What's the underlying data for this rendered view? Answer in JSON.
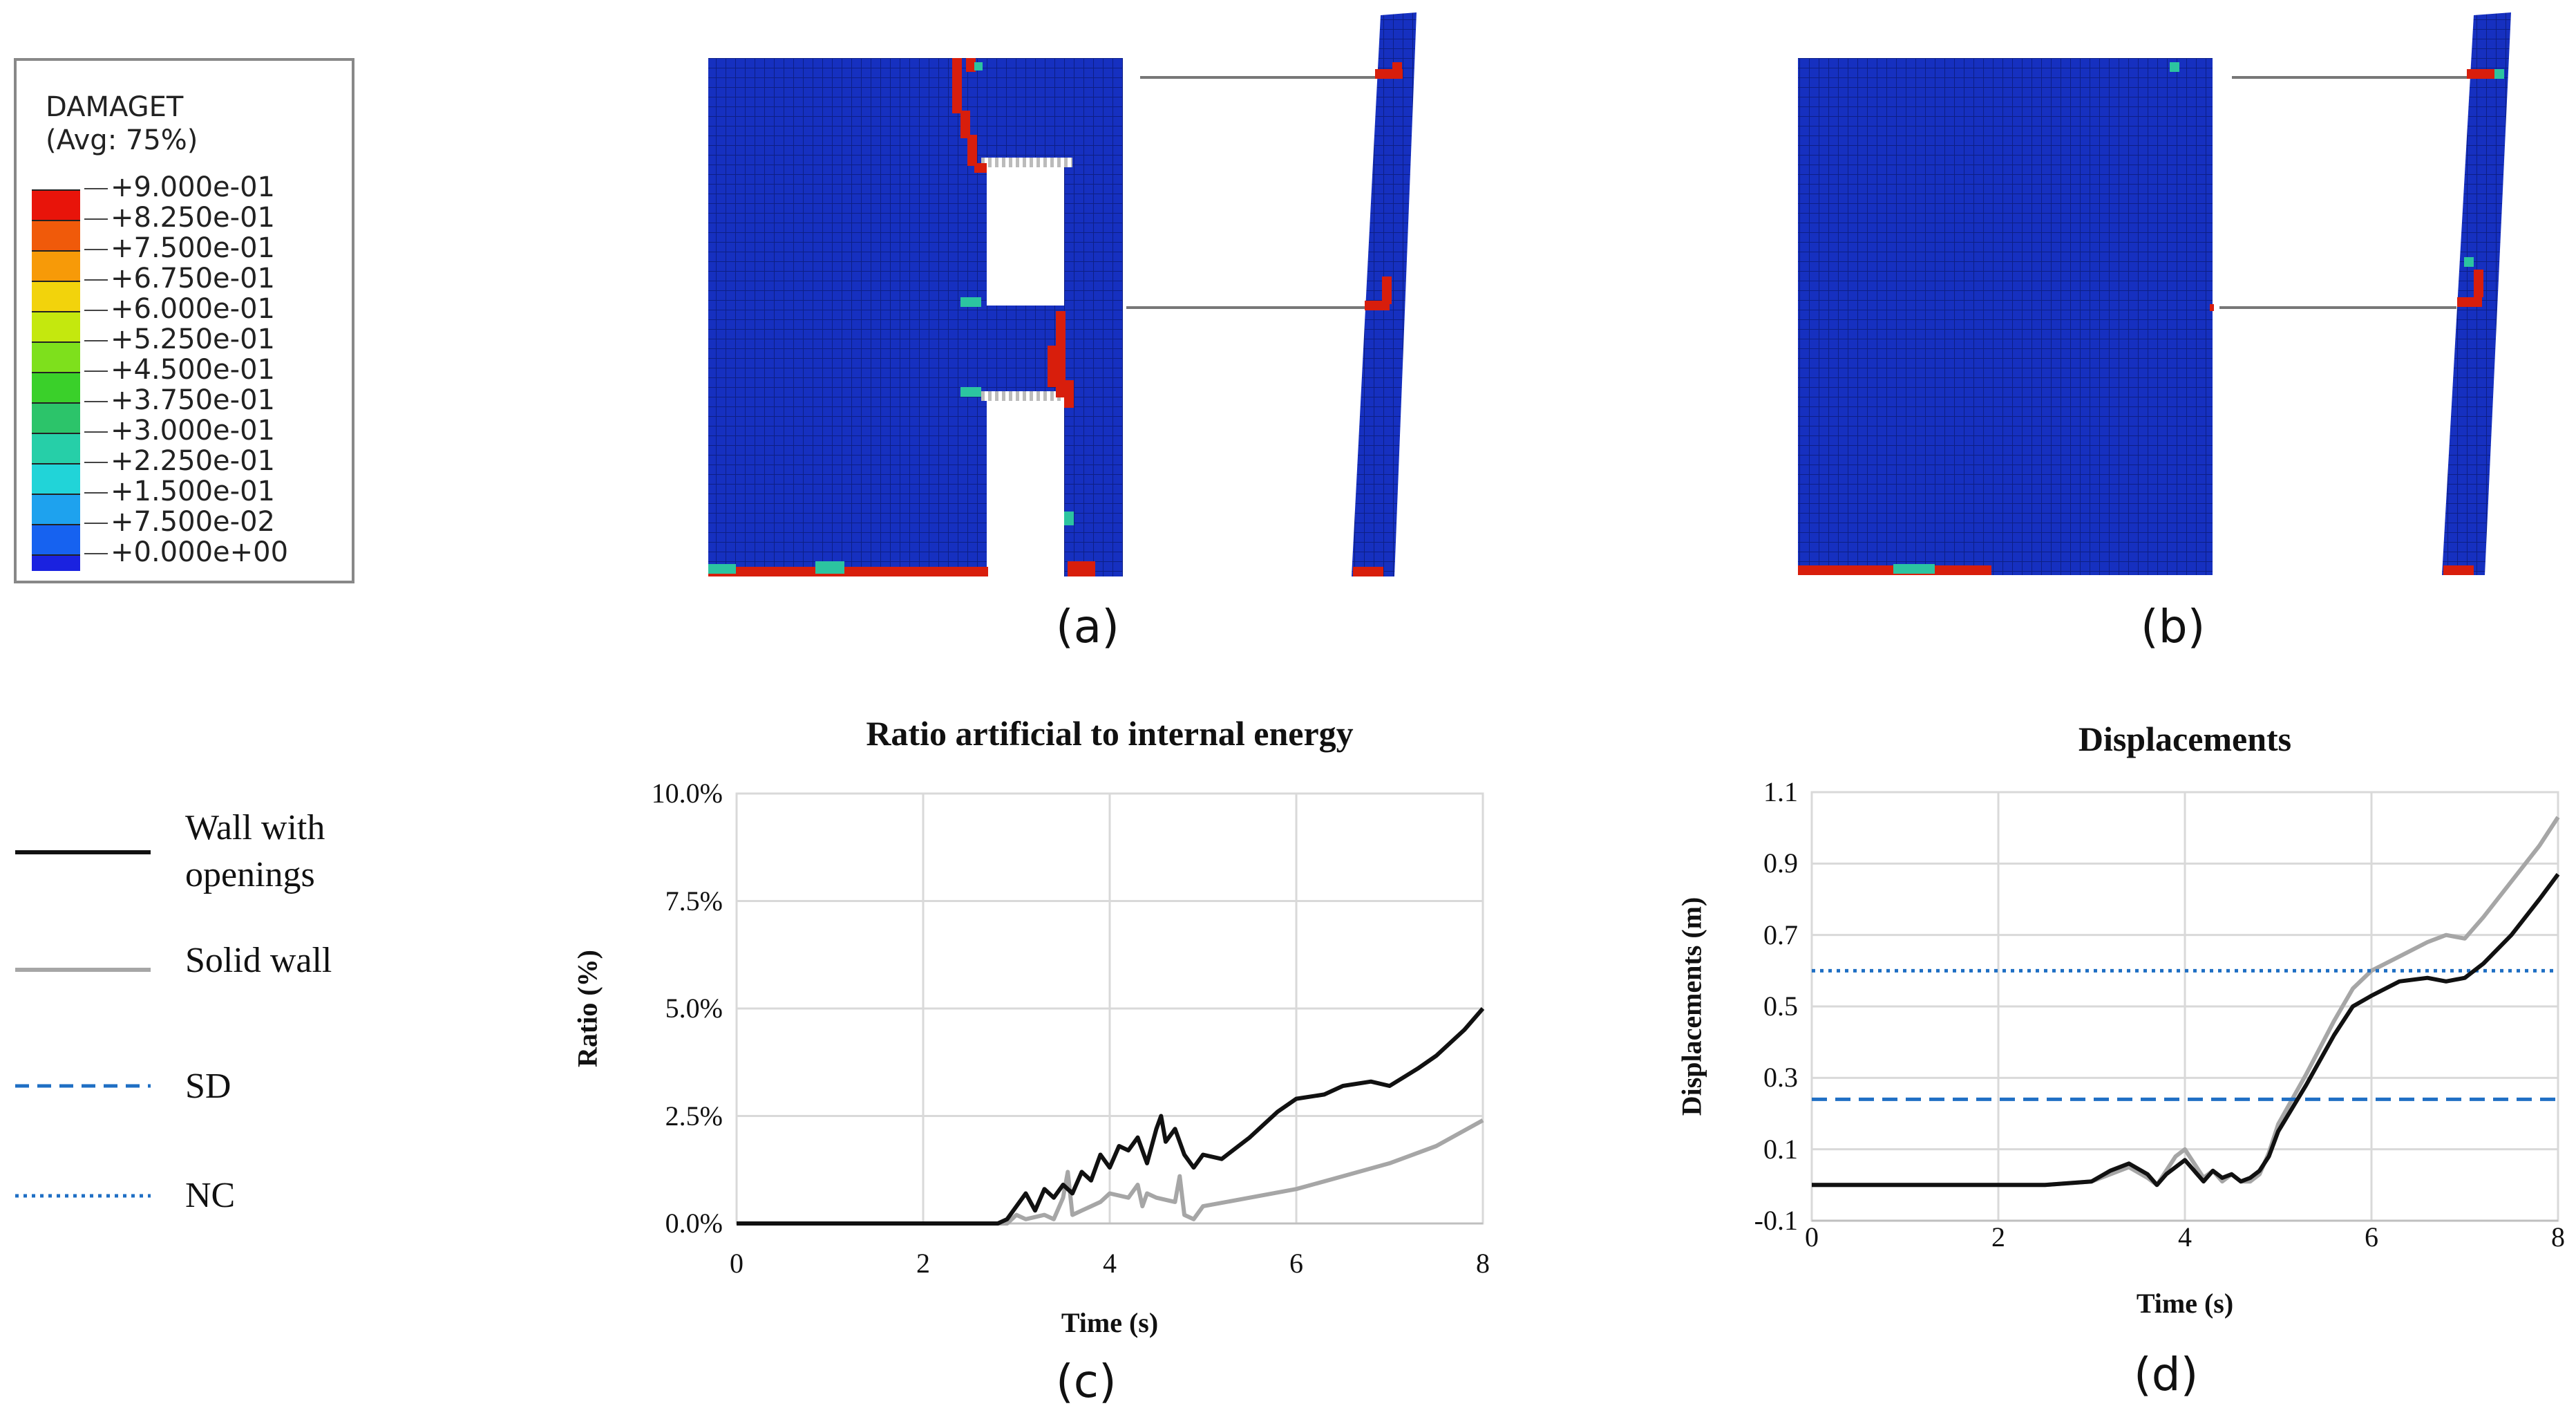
{
  "colorbar": {
    "title": "DAMAGET",
    "subtitle": "(Avg: 75%)",
    "labels": [
      "+9.000e-01",
      "+8.250e-01",
      "+7.500e-01",
      "+6.750e-01",
      "+6.000e-01",
      "+5.250e-01",
      "+4.500e-01",
      "+3.750e-01",
      "+3.000e-01",
      "+2.250e-01",
      "+1.500e-01",
      "+7.500e-02",
      "+0.000e+00"
    ],
    "colors": [
      "#e8140a",
      "#f05a0a",
      "#f79a08",
      "#f2d30c",
      "#c4e80e",
      "#7ee01c",
      "#3ad02a",
      "#2cc46a",
      "#26cfa8",
      "#21d4d8",
      "#1ea2ee",
      "#1662f0",
      "#1a22e0"
    ]
  },
  "panels": {
    "a": "(a)",
    "b": "(b)",
    "c": "(c)",
    "d": "(d)"
  },
  "legend": {
    "wall_openings": "Wall with openings",
    "wall_openings_l1": "Wall with",
    "wall_openings_l2": "openings",
    "solid_wall": "Solid wall",
    "sd": "SD",
    "nc": "NC"
  },
  "colors": {
    "wall_openings": "#111111",
    "solid_wall": "#a6a6a6",
    "sd": "#1f6fc4",
    "nc": "#1f6fc4",
    "mesh_blue": "#1428b8",
    "damage_red": "#d81e0c"
  },
  "chart_data": [
    {
      "type": "line",
      "title": "Ratio artificial to internal energy",
      "xlabel": "Time (s)",
      "ylabel": "Ratio (%)",
      "xlim": [
        0,
        8
      ],
      "ylim": [
        0,
        10
      ],
      "xticks": [
        0,
        2,
        4,
        6,
        8
      ],
      "xtick_labels": [
        "0",
        "2",
        "4",
        "6",
        "8"
      ],
      "yticks": [
        0,
        2.5,
        5,
        7.5,
        10
      ],
      "ytick_labels": [
        "0.0%",
        "2.5%",
        "5.0%",
        "7.5%",
        "10.0%"
      ],
      "grid": true,
      "series": [
        {
          "name": "Wall with openings",
          "x": [
            0,
            2.8,
            2.9,
            3.0,
            3.1,
            3.2,
            3.3,
            3.4,
            3.5,
            3.6,
            3.7,
            3.8,
            3.9,
            4.0,
            4.1,
            4.2,
            4.3,
            4.4,
            4.5,
            4.55,
            4.6,
            4.7,
            4.8,
            4.9,
            5.0,
            5.2,
            5.5,
            5.8,
            6.0,
            6.3,
            6.5,
            6.8,
            7.0,
            7.3,
            7.5,
            7.8,
            8.0
          ],
          "y": [
            0,
            0,
            0.1,
            0.4,
            0.7,
            0.3,
            0.8,
            0.6,
            0.9,
            0.7,
            1.2,
            1.0,
            1.6,
            1.3,
            1.8,
            1.7,
            2.0,
            1.4,
            2.2,
            2.5,
            1.9,
            2.2,
            1.6,
            1.3,
            1.6,
            1.5,
            2.0,
            2.6,
            2.9,
            3.0,
            3.2,
            3.3,
            3.2,
            3.6,
            3.9,
            4.5,
            5.0
          ]
        },
        {
          "name": "Solid wall",
          "x": [
            0,
            2.9,
            3.0,
            3.1,
            3.3,
            3.4,
            3.5,
            3.55,
            3.6,
            3.7,
            3.8,
            3.9,
            4.0,
            4.2,
            4.3,
            4.35,
            4.4,
            4.5,
            4.7,
            4.75,
            4.8,
            4.9,
            5.0,
            5.5,
            6.0,
            6.5,
            7.0,
            7.5,
            8.0
          ],
          "y": [
            0,
            0,
            0.2,
            0.1,
            0.2,
            0.1,
            0.6,
            1.2,
            0.2,
            0.3,
            0.4,
            0.5,
            0.7,
            0.6,
            0.9,
            0.4,
            0.7,
            0.6,
            0.5,
            1.1,
            0.2,
            0.1,
            0.4,
            0.6,
            0.8,
            1.1,
            1.4,
            1.8,
            2.4
          ]
        }
      ]
    },
    {
      "type": "line",
      "title": "Displacements",
      "xlabel": "Time (s)",
      "ylabel": "Displacements (m)",
      "xlim": [
        0,
        8
      ],
      "ylim": [
        -0.1,
        1.1
      ],
      "xticks": [
        0,
        2,
        4,
        6,
        8
      ],
      "xtick_labels": [
        "0",
        "2",
        "4",
        "6",
        "8"
      ],
      "yticks": [
        -0.1,
        0.1,
        0.3,
        0.5,
        0.7,
        0.9,
        1.1
      ],
      "ytick_labels": [
        "-0.1",
        "0.1",
        "0.3",
        "0.5",
        "0.7",
        "0.9",
        "1.1"
      ],
      "grid": true,
      "series": [
        {
          "name": "Wall with openings",
          "x": [
            0,
            2.5,
            3.0,
            3.2,
            3.4,
            3.6,
            3.7,
            3.8,
            3.9,
            4.0,
            4.1,
            4.2,
            4.3,
            4.4,
            4.5,
            4.6,
            4.7,
            4.8,
            4.9,
            5.0,
            5.3,
            5.6,
            5.8,
            6.0,
            6.3,
            6.6,
            6.8,
            7.0,
            7.2,
            7.5,
            7.8,
            8.0
          ],
          "y": [
            0,
            0,
            0.01,
            0.04,
            0.06,
            0.03,
            0.0,
            0.03,
            0.05,
            0.07,
            0.04,
            0.01,
            0.04,
            0.02,
            0.03,
            0.01,
            0.02,
            0.04,
            0.08,
            0.15,
            0.28,
            0.42,
            0.5,
            0.53,
            0.57,
            0.58,
            0.57,
            0.58,
            0.62,
            0.7,
            0.8,
            0.87
          ]
        },
        {
          "name": "Solid wall",
          "x": [
            0,
            2.5,
            3.0,
            3.2,
            3.4,
            3.6,
            3.7,
            3.8,
            3.9,
            4.0,
            4.1,
            4.2,
            4.3,
            4.4,
            4.5,
            4.6,
            4.7,
            4.8,
            4.9,
            5.0,
            5.3,
            5.6,
            5.8,
            6.0,
            6.3,
            6.6,
            6.8,
            7.0,
            7.2,
            7.5,
            7.8,
            8.0
          ],
          "y": [
            0,
            0,
            0.01,
            0.03,
            0.05,
            0.02,
            0.0,
            0.04,
            0.08,
            0.1,
            0.06,
            0.02,
            0.04,
            0.01,
            0.03,
            0.01,
            0.01,
            0.03,
            0.09,
            0.17,
            0.31,
            0.46,
            0.55,
            0.6,
            0.64,
            0.68,
            0.7,
            0.69,
            0.75,
            0.85,
            0.95,
            1.03
          ]
        },
        {
          "name": "SD",
          "style": "dashed",
          "constant": 0.24
        },
        {
          "name": "NC",
          "style": "dotted",
          "constant": 0.6
        }
      ]
    }
  ]
}
